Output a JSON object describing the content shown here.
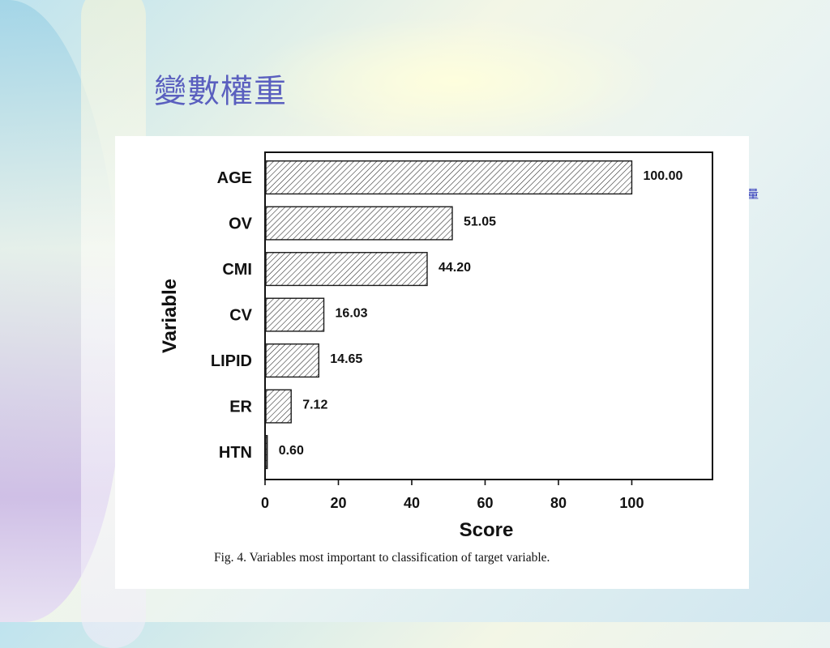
{
  "slide": {
    "title": "變數權重",
    "side_text": "量"
  },
  "figure": {
    "caption": "Fig. 4.  Variables most important to classification of target variable."
  },
  "chart_data": {
    "type": "bar",
    "orientation": "horizontal",
    "categories": [
      "AGE",
      "OV",
      "CMI",
      "CV",
      "LIPID",
      "ER",
      "HTN"
    ],
    "values": [
      100.0,
      51.05,
      44.2,
      16.03,
      14.65,
      7.12,
      0.6
    ],
    "value_labels": [
      "100.00",
      "51.05",
      "44.20",
      "16.03",
      "14.65",
      "7.12",
      "0.60"
    ],
    "xlabel": "Score",
    "ylabel": "Variable",
    "xlim": [
      0,
      122
    ],
    "xticks": [
      0,
      20,
      40,
      60,
      80,
      100
    ],
    "bar_fill": "hatched",
    "bar_color": "#1a1a1a",
    "grid": false,
    "legend": "none"
  }
}
